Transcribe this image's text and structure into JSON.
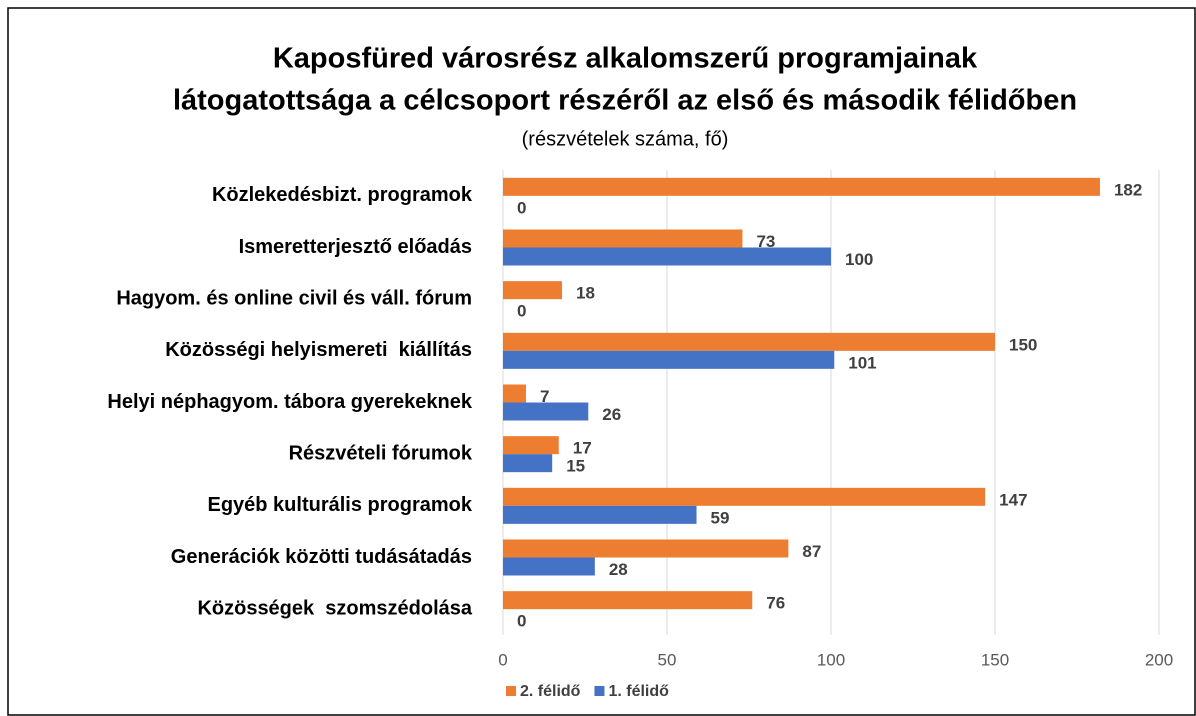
{
  "chart_data": {
    "type": "hbar",
    "title": [
      "Kaposfüred városrész alkalomszerű programjainak",
      "látogatottsága a célcsoport részéről az első és második félidőben"
    ],
    "subtitle": "(részvételek száma, fő)",
    "categories": [
      "Közlekedésbizt. programok",
      "Ismeretterjesztő előadás",
      "Hagyom. és online civil és váll. fórum",
      "Közösségi helyismereti  kiállítás",
      "Helyi néphagyom. tábora gyerekeknek",
      "Részvételi fórumok",
      "Egyéb kulturális programok",
      "Generációk közötti tudásátadás",
      "Közösségek  szomszédolása"
    ],
    "series": [
      {
        "name": "2. félidő",
        "color": "#ed7d31",
        "values": [
          182,
          73,
          18,
          150,
          7,
          17,
          147,
          87,
          76
        ]
      },
      {
        "name": "1. félidő",
        "color": "#4472c4",
        "values": [
          0,
          100,
          0,
          101,
          26,
          15,
          59,
          28,
          0
        ]
      }
    ],
    "xlim": [
      0,
      200
    ],
    "xticks": [
      0,
      50,
      100,
      150,
      200
    ],
    "grid": true,
    "legend": "bottom"
  }
}
